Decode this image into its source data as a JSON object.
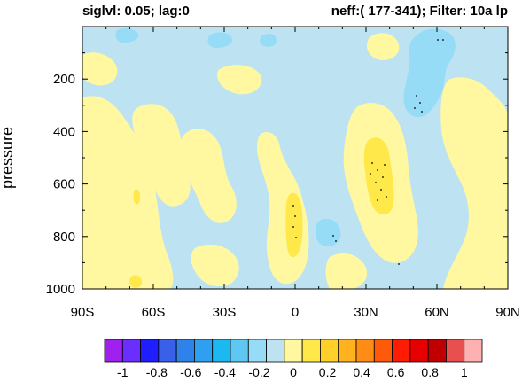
{
  "titles": {
    "left": "siglvl: 0.05; lag:0",
    "right": "neff:( 177-341); Filter: 10a lp"
  },
  "chart_data": {
    "type": "heatmap",
    "title_left": "siglvl: 0.05; lag:0",
    "title_right": "neff:( 177-341); Filter: 10a lp",
    "xlabel": "",
    "ylabel": "pressure",
    "x_ticks": [
      "90S",
      "60S",
      "30S",
      "0",
      "30N",
      "60N",
      "90N"
    ],
    "x_tick_values": [
      -90,
      -60,
      -30,
      0,
      30,
      60,
      90
    ],
    "xlim": [
      -90,
      90
    ],
    "y_ticks": [
      "200",
      "400",
      "600",
      "800",
      "1000"
    ],
    "y_tick_values": [
      200,
      400,
      600,
      800,
      1000
    ],
    "ylim": [
      1000,
      0
    ],
    "colorbar": {
      "labels": [
        "-1",
        "-0.8",
        "-0.6",
        "-0.4",
        "-0.2",
        "0",
        "0.2",
        "0.4",
        "0.6",
        "0.8",
        "1"
      ],
      "levels": [
        -1,
        -0.9,
        -0.8,
        -0.7,
        -0.6,
        -0.5,
        -0.4,
        -0.3,
        -0.2,
        -0.1,
        0,
        0.1,
        0.2,
        0.3,
        0.4,
        0.5,
        0.6,
        0.7,
        0.8,
        0.9,
        1
      ],
      "colors": [
        "#a020f0",
        "#6a2fff",
        "#1e1eff",
        "#3a5fe8",
        "#2e82ea",
        "#2f9ff0",
        "#1cb8f0",
        "#5ec8f3",
        "#96dcf6",
        "#bde3f3",
        "#fff8a0",
        "#ffe84a",
        "#ffcf2a",
        "#ffb21e",
        "#ff8c14",
        "#ff5a0a",
        "#ff1c05",
        "#e60000",
        "#c00000",
        "#e85050",
        "#ffb0b0"
      ]
    },
    "field_colors": {
      "light_blue": "#bde3f3",
      "mid_blue": "#96dcf6",
      "light_yellow": "#fff8a0",
      "yellow": "#ffe84a"
    },
    "features": [
      {
        "sign": "positive",
        "lat": 0,
        "p_range": [
          700,
          920
        ],
        "level": 0.1
      },
      {
        "sign": "positive",
        "lat": 35,
        "p_range": [
          520,
          790
        ],
        "level": 0.1
      },
      {
        "sign": "positive",
        "lat": -80,
        "p_range": [
          450,
          780
        ],
        "level": 0
      },
      {
        "sign": "negative",
        "lat": 50,
        "p_range": [
          0,
          480
        ],
        "level": -0.1
      },
      {
        "sign": "negative",
        "lat": 15,
        "p_range": [
          880,
          980
        ],
        "level": -0.1
      }
    ],
    "significance_stipple": [
      {
        "lat": 0,
        "p_range": [
          740,
          880
        ]
      },
      {
        "lat": 35,
        "p_range": [
          580,
          760
        ]
      },
      {
        "lat": 52,
        "p_range": [
          270,
          360
        ]
      },
      {
        "lat": 62,
        "p_range": [
          30,
          50
        ]
      },
      {
        "lat": 17,
        "p_range": [
          920,
          970
        ]
      }
    ],
    "grid": false,
    "legend": "colorbar-bottom"
  }
}
